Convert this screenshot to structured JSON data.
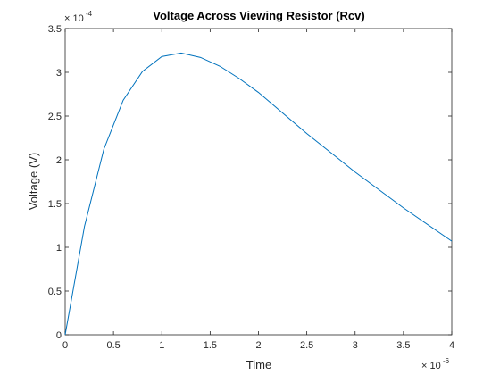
{
  "chart_data": {
    "type": "line",
    "title": "Voltage Across Viewing Resistor (Rcv)",
    "xlabel": "Time",
    "ylabel": "Voltage (V)",
    "x_multiplier": {
      "base": "× 10",
      "exponent": "-6"
    },
    "y_multiplier": {
      "base": "× 10",
      "exponent": "-4"
    },
    "xlim": [
      0,
      4
    ],
    "ylim": [
      0,
      3.5
    ],
    "xticks": [
      "0",
      "0.5",
      "1",
      "1.5",
      "2",
      "2.5",
      "3",
      "3.5",
      "4"
    ],
    "yticks": [
      "0",
      "0.5",
      "1",
      "1.5",
      "2",
      "2.5",
      "3",
      "3.5"
    ],
    "line_color": "#0072bd",
    "grid": false,
    "series": [
      {
        "x": [
          0,
          0.2,
          0.4,
          0.6,
          0.8,
          1.0,
          1.2,
          1.4,
          1.6,
          1.8,
          2.0,
          2.5,
          3.0,
          3.5,
          4.0
        ],
        "y": [
          0,
          1.24,
          2.12,
          2.68,
          3.01,
          3.18,
          3.22,
          3.17,
          3.07,
          2.93,
          2.77,
          2.3,
          1.86,
          1.45,
          1.07
        ]
      }
    ]
  }
}
